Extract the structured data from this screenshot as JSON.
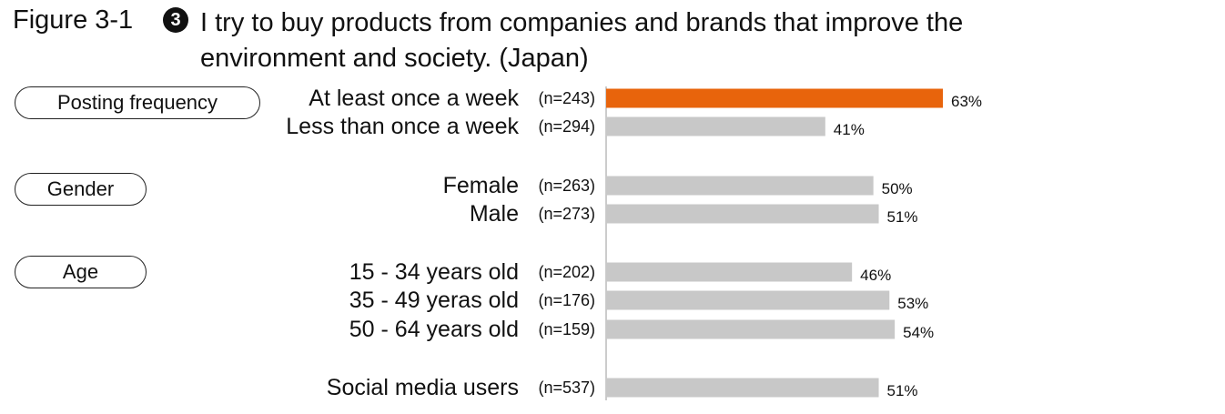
{
  "figure": {
    "label": "Figure 3-1",
    "number_badge": "3",
    "title": "I try to buy products from companies and brands that improve the environment and society. (Japan)"
  },
  "groups": [
    {
      "label": "Posting frequency"
    },
    {
      "label": "Gender"
    },
    {
      "label": "Age"
    }
  ],
  "colors": {
    "highlight": "#E8640C",
    "default": "#C8C8C8",
    "axis": "#999999"
  },
  "chart_data": {
    "type": "bar",
    "orientation": "horizontal",
    "xlim": [
      0,
      100
    ],
    "bars": [
      {
        "category": "At least once a week",
        "n": "(n=243)",
        "value": 63,
        "label": "63%",
        "highlight": true
      },
      {
        "category": "Less than once a week",
        "n": "(n=294)",
        "value": 41,
        "label": "41%",
        "highlight": false
      },
      {
        "category": "Female",
        "n": "(n=263)",
        "value": 50,
        "label": "50%",
        "highlight": false
      },
      {
        "category": "Male",
        "n": "(n=273)",
        "value": 51,
        "label": "51%",
        "highlight": false
      },
      {
        "category": "15 - 34 years old",
        "n": "(n=202)",
        "value": 46,
        "label": "46%",
        "highlight": false
      },
      {
        "category": "35 - 49 yeras old",
        "n": "(n=176)",
        "value": 53,
        "label": "53%",
        "highlight": false
      },
      {
        "category": "50 - 64 years old",
        "n": "(n=159)",
        "value": 54,
        "label": "54%",
        "highlight": false
      },
      {
        "category": "Social media users",
        "n": "(n=537)",
        "value": 51,
        "label": "51%",
        "highlight": false
      }
    ]
  }
}
